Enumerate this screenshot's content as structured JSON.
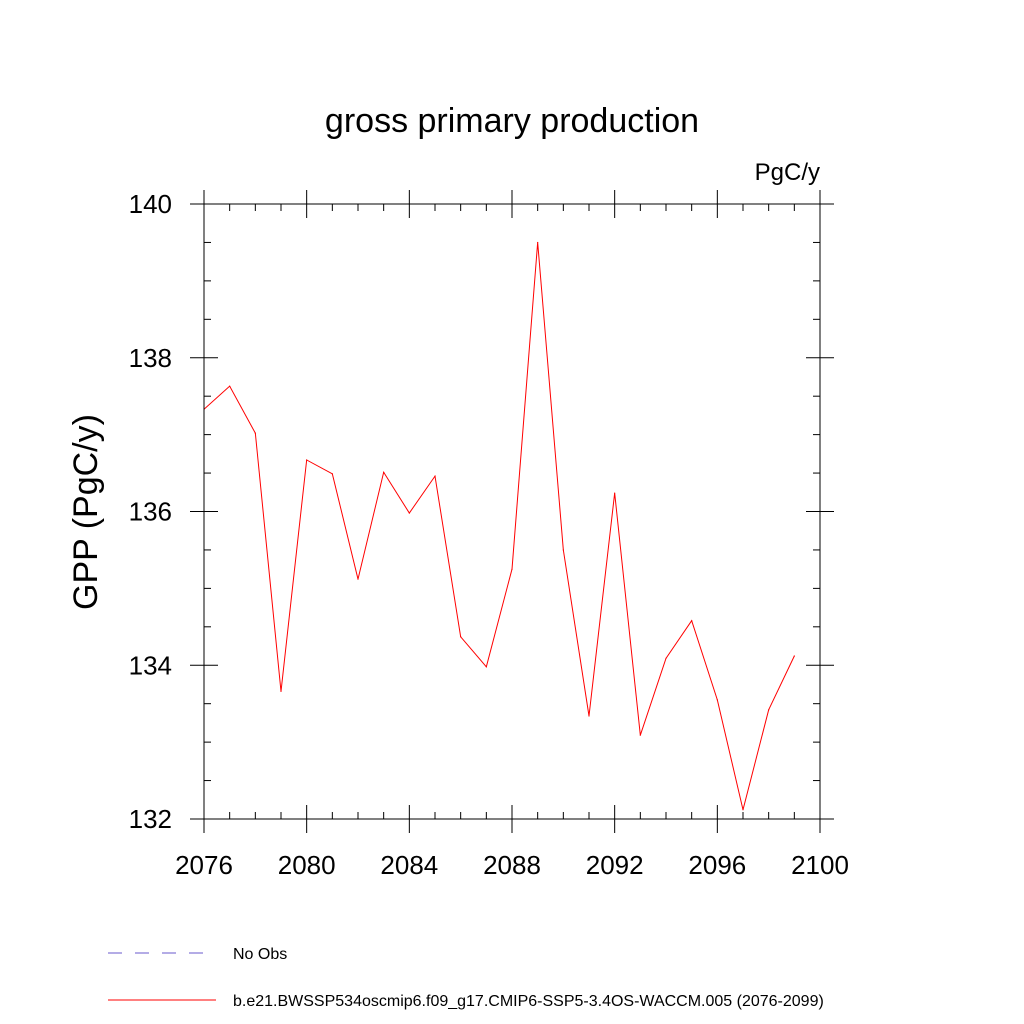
{
  "chart_data": {
    "type": "line",
    "title": "gross primary production",
    "units_label": "PgC/y",
    "xlabel": "",
    "ylabel": "GPP  (PgC/y)",
    "xlim": [
      2076,
      2100
    ],
    "ylim": [
      132,
      140
    ],
    "x_ticks": [
      2076,
      2080,
      2084,
      2088,
      2092,
      2096,
      2100
    ],
    "x_tick_labels": [
      "2076",
      "2080",
      "2084",
      "2088",
      "2092",
      "2096",
      "2100"
    ],
    "y_ticks": [
      132,
      134,
      136,
      138,
      140
    ],
    "y_tick_labels": [
      "132",
      "134",
      "136",
      "138",
      "140"
    ],
    "x_minor_step": 1,
    "y_minor_step": 0.5,
    "series": [
      {
        "name": "b.e21.BWSSP534oscmip6.f09_g17.CMIP6-SSP5-3.4OS-WACCM.005 (2076-2099)",
        "color": "#ff0000",
        "style": "solid",
        "x": [
          2076,
          2077,
          2078,
          2079,
          2080,
          2081,
          2082,
          2083,
          2084,
          2085,
          2086,
          2087,
          2088,
          2089,
          2090,
          2091,
          2092,
          2093,
          2094,
          2095,
          2096,
          2097,
          2098,
          2099
        ],
        "values": [
          137.33,
          137.63,
          137.02,
          133.66,
          136.67,
          136.49,
          135.12,
          136.51,
          135.98,
          136.46,
          134.37,
          133.98,
          135.25,
          139.5,
          135.5,
          133.34,
          136.24,
          133.09,
          134.09,
          134.58,
          133.55,
          132.12,
          133.42,
          134.12
        ]
      }
    ],
    "legend": [
      {
        "label": "No Obs",
        "color": "#6a5acd",
        "style": "dashed"
      },
      {
        "label": "b.e21.BWSSP534oscmip6.f09_g17.CMIP6-SSP5-3.4OS-WACCM.005 (2076-2099)",
        "color": "#ff0000",
        "style": "solid"
      }
    ],
    "legend_position": "bottom-left"
  }
}
